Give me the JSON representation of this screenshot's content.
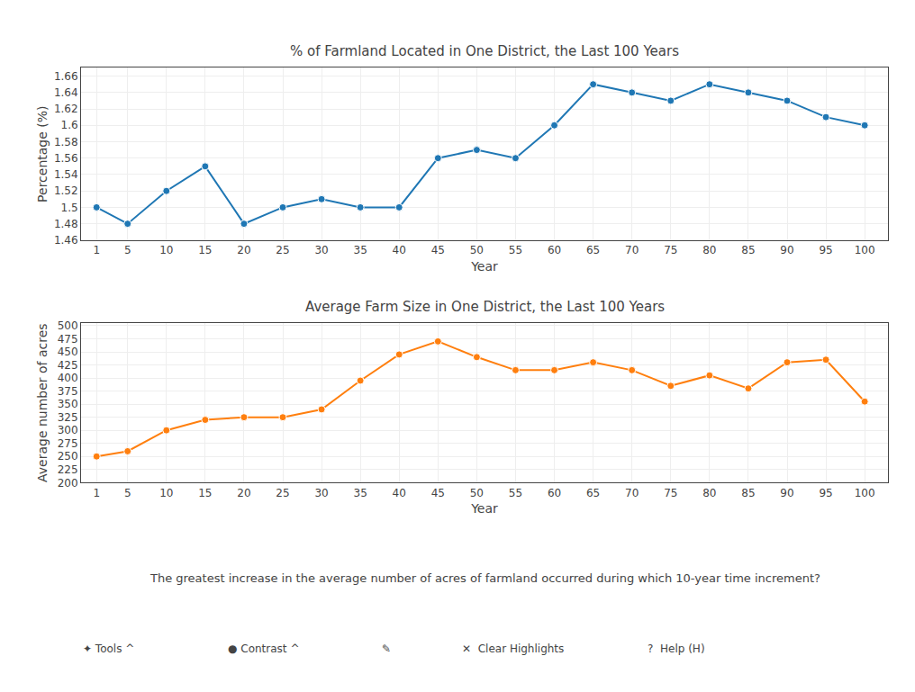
{
  "chart_data": [
    {
      "type": "line",
      "title": "% of Farmland Located in One District, the Last 100 Years",
      "xlabel": "Year",
      "ylabel": "Percentage (%)",
      "x": [
        1,
        5,
        10,
        15,
        20,
        25,
        30,
        35,
        40,
        45,
        50,
        55,
        60,
        65,
        70,
        75,
        80,
        85,
        90,
        95,
        100
      ],
      "values": [
        1.5,
        1.48,
        1.52,
        1.55,
        1.48,
        1.5,
        1.51,
        1.5,
        1.5,
        1.56,
        1.57,
        1.56,
        1.6,
        1.65,
        1.64,
        1.63,
        1.65,
        1.64,
        1.63,
        1.61,
        1.6
      ],
      "xlim": [
        -1,
        103
      ],
      "xticks": [
        1,
        5,
        10,
        15,
        20,
        25,
        30,
        35,
        40,
        45,
        50,
        55,
        60,
        65,
        70,
        75,
        80,
        85,
        90,
        95,
        100
      ],
      "ylim": [
        1.46,
        1.67
      ],
      "yticks": [
        1.46,
        1.48,
        1.5,
        1.52,
        1.54,
        1.56,
        1.58,
        1.6,
        1.62,
        1.64,
        1.66
      ],
      "grid": true,
      "marker": "circle"
    },
    {
      "type": "line",
      "title": "Average Farm Size in One District, the Last 100 Years",
      "xlabel": "Year",
      "ylabel": "Average number of acres",
      "x": [
        1,
        5,
        10,
        15,
        20,
        25,
        30,
        35,
        40,
        45,
        50,
        55,
        60,
        65,
        70,
        75,
        80,
        85,
        90,
        95,
        100
      ],
      "values": [
        250,
        260,
        300,
        320,
        325,
        325,
        340,
        395,
        445,
        470,
        440,
        415,
        415,
        430,
        415,
        385,
        405,
        380,
        430,
        435,
        355
      ],
      "xlim": [
        -1,
        103
      ],
      "xticks": [
        1,
        5,
        10,
        15,
        20,
        25,
        30,
        35,
        40,
        45,
        50,
        55,
        60,
        65,
        70,
        75,
        80,
        85,
        90,
        95,
        100
      ],
      "ylim": [
        200,
        505
      ],
      "yticks": [
        200,
        225,
        250,
        275,
        300,
        325,
        350,
        375,
        400,
        425,
        450,
        475,
        500
      ],
      "grid": true,
      "marker": "circle",
      "annotations": [
        "The greatest increase in the average number of acres of farmland occurred during which 10-year time increment?",
        "✦ Tools ^",
        "● Contrast ^",
        "✎",
        "✕  Clear Highlights",
        "?  Help (H)"
      ]
    }
  ]
}
